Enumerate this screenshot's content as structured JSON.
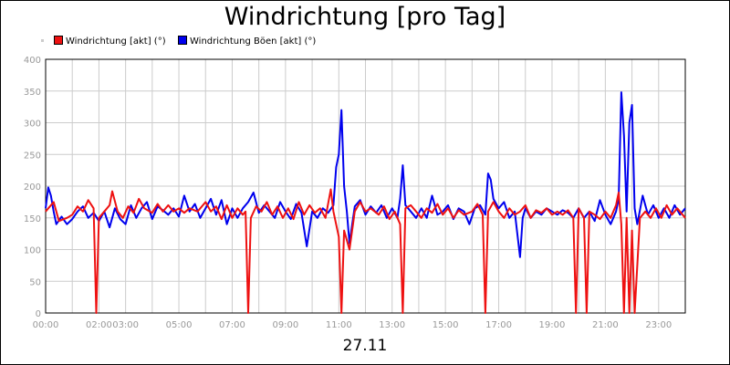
{
  "chart_data": {
    "type": "line",
    "title": "Windrichtung [pro Tag]",
    "xlabel": "27.11",
    "ylabel": "",
    "x_range_hours": [
      0,
      24
    ],
    "ylim": [
      0,
      400
    ],
    "y_ticks": [
      0,
      50,
      100,
      150,
      200,
      250,
      300,
      350,
      400
    ],
    "x_tick_labels": [
      {
        "h": 0,
        "label": "00:00"
      },
      {
        "h": 2,
        "label": "02:00"
      },
      {
        "h": 3,
        "label": "03:00"
      },
      {
        "h": 5,
        "label": "05:00"
      },
      {
        "h": 7,
        "label": "07:00"
      },
      {
        "h": 9,
        "label": "09:00"
      },
      {
        "h": 11,
        "label": "11:00"
      },
      {
        "h": 13,
        "label": "13:00"
      },
      {
        "h": 15,
        "label": "15:00"
      },
      {
        "h": 17,
        "label": "17:00"
      },
      {
        "h": 19,
        "label": "19:00"
      },
      {
        "h": 21,
        "label": "21:00"
      },
      {
        "h": 23,
        "label": "23:00"
      }
    ],
    "grid": true,
    "legend_position": "top-left",
    "series": [
      {
        "name": "Windrichtung [akt] (°)",
        "color": "#ee1111",
        "points": [
          [
            0.0,
            160
          ],
          [
            0.3,
            175
          ],
          [
            0.5,
            145
          ],
          [
            0.8,
            150
          ],
          [
            1.0,
            155
          ],
          [
            1.2,
            168
          ],
          [
            1.4,
            160
          ],
          [
            1.6,
            178
          ],
          [
            1.8,
            165
          ],
          [
            1.9,
            0
          ],
          [
            2.0,
            150
          ],
          [
            2.2,
            160
          ],
          [
            2.4,
            170
          ],
          [
            2.5,
            192
          ],
          [
            2.7,
            160
          ],
          [
            2.9,
            150
          ],
          [
            3.1,
            168
          ],
          [
            3.3,
            158
          ],
          [
            3.5,
            180
          ],
          [
            3.7,
            165
          ],
          [
            4.0,
            158
          ],
          [
            4.2,
            172
          ],
          [
            4.4,
            160
          ],
          [
            4.6,
            170
          ],
          [
            4.8,
            160
          ],
          [
            5.0,
            165
          ],
          [
            5.2,
            158
          ],
          [
            5.4,
            165
          ],
          [
            5.7,
            160
          ],
          [
            6.0,
            175
          ],
          [
            6.2,
            160
          ],
          [
            6.4,
            168
          ],
          [
            6.6,
            148
          ],
          [
            6.8,
            170
          ],
          [
            7.0,
            150
          ],
          [
            7.2,
            165
          ],
          [
            7.4,
            155
          ],
          [
            7.5,
            160
          ],
          [
            7.6,
            0
          ],
          [
            7.7,
            150
          ],
          [
            7.9,
            168
          ],
          [
            8.1,
            160
          ],
          [
            8.3,
            175
          ],
          [
            8.5,
            155
          ],
          [
            8.7,
            168
          ],
          [
            8.9,
            150
          ],
          [
            9.1,
            165
          ],
          [
            9.3,
            148
          ],
          [
            9.5,
            175
          ],
          [
            9.7,
            155
          ],
          [
            9.9,
            170
          ],
          [
            10.1,
            158
          ],
          [
            10.3,
            165
          ],
          [
            10.5,
            150
          ],
          [
            10.7,
            195
          ],
          [
            10.8,
            160
          ],
          [
            11.0,
            120
          ],
          [
            11.1,
            0
          ],
          [
            11.2,
            130
          ],
          [
            11.4,
            100
          ],
          [
            11.6,
            160
          ],
          [
            11.8,
            175
          ],
          [
            12.0,
            160
          ],
          [
            12.2,
            165
          ],
          [
            12.5,
            155
          ],
          [
            12.7,
            168
          ],
          [
            12.9,
            148
          ],
          [
            13.1,
            160
          ],
          [
            13.3,
            140
          ],
          [
            13.4,
            0
          ],
          [
            13.5,
            165
          ],
          [
            13.7,
            170
          ],
          [
            13.9,
            160
          ],
          [
            14.1,
            150
          ],
          [
            14.3,
            165
          ],
          [
            14.5,
            158
          ],
          [
            14.7,
            172
          ],
          [
            14.9,
            155
          ],
          [
            15.1,
            165
          ],
          [
            15.3,
            150
          ],
          [
            15.5,
            162
          ],
          [
            15.7,
            155
          ],
          [
            16.0,
            160
          ],
          [
            16.2,
            172
          ],
          [
            16.4,
            155
          ],
          [
            16.5,
            0
          ],
          [
            16.6,
            160
          ],
          [
            16.8,
            175
          ],
          [
            17.0,
            160
          ],
          [
            17.2,
            150
          ],
          [
            17.4,
            165
          ],
          [
            17.6,
            155
          ],
          [
            17.8,
            160
          ],
          [
            18.0,
            170
          ],
          [
            18.2,
            150
          ],
          [
            18.4,
            162
          ],
          [
            18.6,
            158
          ],
          [
            18.8,
            165
          ],
          [
            19.0,
            155
          ],
          [
            19.2,
            160
          ],
          [
            19.4,
            155
          ],
          [
            19.6,
            162
          ],
          [
            19.8,
            150
          ],
          [
            19.9,
            0
          ],
          [
            20.0,
            165
          ],
          [
            20.2,
            150
          ],
          [
            20.3,
            0
          ],
          [
            20.4,
            160
          ],
          [
            20.6,
            155
          ],
          [
            20.8,
            148
          ],
          [
            21.0,
            160
          ],
          [
            21.2,
            150
          ],
          [
            21.4,
            170
          ],
          [
            21.5,
            190
          ],
          [
            21.6,
            140
          ],
          [
            21.7,
            0
          ],
          [
            21.8,
            150
          ],
          [
            21.9,
            0
          ],
          [
            22.0,
            130
          ],
          [
            22.1,
            0
          ],
          [
            22.3,
            150
          ],
          [
            22.5,
            160
          ],
          [
            22.7,
            150
          ],
          [
            22.9,
            165
          ],
          [
            23.1,
            150
          ],
          [
            23.3,
            170
          ],
          [
            23.5,
            155
          ],
          [
            23.7,
            165
          ],
          [
            24.0,
            150
          ]
        ]
      },
      {
        "name": "Windrichtung Böen [akt] (°)",
        "color": "#0000ee",
        "points": [
          [
            0.0,
            165
          ],
          [
            0.1,
            198
          ],
          [
            0.2,
            185
          ],
          [
            0.3,
            160
          ],
          [
            0.4,
            140
          ],
          [
            0.6,
            152
          ],
          [
            0.8,
            140
          ],
          [
            1.0,
            148
          ],
          [
            1.2,
            160
          ],
          [
            1.4,
            168
          ],
          [
            1.6,
            150
          ],
          [
            1.8,
            158
          ],
          [
            2.0,
            145
          ],
          [
            2.2,
            160
          ],
          [
            2.4,
            135
          ],
          [
            2.6,
            165
          ],
          [
            2.8,
            148
          ],
          [
            3.0,
            140
          ],
          [
            3.2,
            170
          ],
          [
            3.4,
            150
          ],
          [
            3.6,
            165
          ],
          [
            3.8,
            175
          ],
          [
            4.0,
            148
          ],
          [
            4.2,
            168
          ],
          [
            4.4,
            162
          ],
          [
            4.6,
            155
          ],
          [
            4.8,
            165
          ],
          [
            5.0,
            152
          ],
          [
            5.2,
            185
          ],
          [
            5.4,
            160
          ],
          [
            5.6,
            172
          ],
          [
            5.8,
            150
          ],
          [
            6.0,
            165
          ],
          [
            6.2,
            180
          ],
          [
            6.4,
            155
          ],
          [
            6.6,
            178
          ],
          [
            6.8,
            140
          ],
          [
            7.0,
            165
          ],
          [
            7.2,
            150
          ],
          [
            7.4,
            165
          ],
          [
            7.6,
            175
          ],
          [
            7.8,
            190
          ],
          [
            8.0,
            158
          ],
          [
            8.2,
            170
          ],
          [
            8.4,
            160
          ],
          [
            8.6,
            150
          ],
          [
            8.8,
            175
          ],
          [
            9.0,
            160
          ],
          [
            9.2,
            148
          ],
          [
            9.4,
            172
          ],
          [
            9.6,
            158
          ],
          [
            9.8,
            105
          ],
          [
            10.0,
            160
          ],
          [
            10.2,
            150
          ],
          [
            10.4,
            165
          ],
          [
            10.6,
            158
          ],
          [
            10.8,
            170
          ],
          [
            10.9,
            230
          ],
          [
            11.0,
            250
          ],
          [
            11.1,
            320
          ],
          [
            11.2,
            200
          ],
          [
            11.3,
            160
          ],
          [
            11.4,
            110
          ],
          [
            11.6,
            168
          ],
          [
            11.8,
            178
          ],
          [
            12.0,
            155
          ],
          [
            12.2,
            168
          ],
          [
            12.4,
            158
          ],
          [
            12.6,
            170
          ],
          [
            12.8,
            150
          ],
          [
            13.0,
            165
          ],
          [
            13.2,
            150
          ],
          [
            13.3,
            180
          ],
          [
            13.4,
            233
          ],
          [
            13.5,
            170
          ],
          [
            13.7,
            160
          ],
          [
            13.9,
            150
          ],
          [
            14.1,
            165
          ],
          [
            14.3,
            150
          ],
          [
            14.5,
            185
          ],
          [
            14.7,
            155
          ],
          [
            14.9,
            160
          ],
          [
            15.1,
            170
          ],
          [
            15.3,
            148
          ],
          [
            15.5,
            165
          ],
          [
            15.7,
            160
          ],
          [
            15.9,
            140
          ],
          [
            16.1,
            165
          ],
          [
            16.3,
            170
          ],
          [
            16.5,
            155
          ],
          [
            16.6,
            220
          ],
          [
            16.7,
            210
          ],
          [
            16.8,
            180
          ],
          [
            17.0,
            165
          ],
          [
            17.2,
            175
          ],
          [
            17.4,
            150
          ],
          [
            17.6,
            160
          ],
          [
            17.8,
            88
          ],
          [
            17.9,
            150
          ],
          [
            18.0,
            165
          ],
          [
            18.2,
            150
          ],
          [
            18.4,
            160
          ],
          [
            18.6,
            155
          ],
          [
            18.8,
            165
          ],
          [
            19.0,
            160
          ],
          [
            19.2,
            155
          ],
          [
            19.4,
            162
          ],
          [
            19.6,
            158
          ],
          [
            19.8,
            150
          ],
          [
            20.0,
            165
          ],
          [
            20.2,
            150
          ],
          [
            20.4,
            160
          ],
          [
            20.6,
            145
          ],
          [
            20.8,
            178
          ],
          [
            21.0,
            155
          ],
          [
            21.2,
            140
          ],
          [
            21.4,
            160
          ],
          [
            21.5,
            180
          ],
          [
            21.6,
            348
          ],
          [
            21.7,
            280
          ],
          [
            21.8,
            160
          ],
          [
            21.9,
            300
          ],
          [
            22.0,
            328
          ],
          [
            22.1,
            165
          ],
          [
            22.2,
            140
          ],
          [
            22.4,
            185
          ],
          [
            22.6,
            155
          ],
          [
            22.8,
            170
          ],
          [
            23.0,
            150
          ],
          [
            23.2,
            165
          ],
          [
            23.4,
            150
          ],
          [
            23.6,
            170
          ],
          [
            23.8,
            155
          ],
          [
            24.0,
            165
          ]
        ]
      }
    ]
  }
}
